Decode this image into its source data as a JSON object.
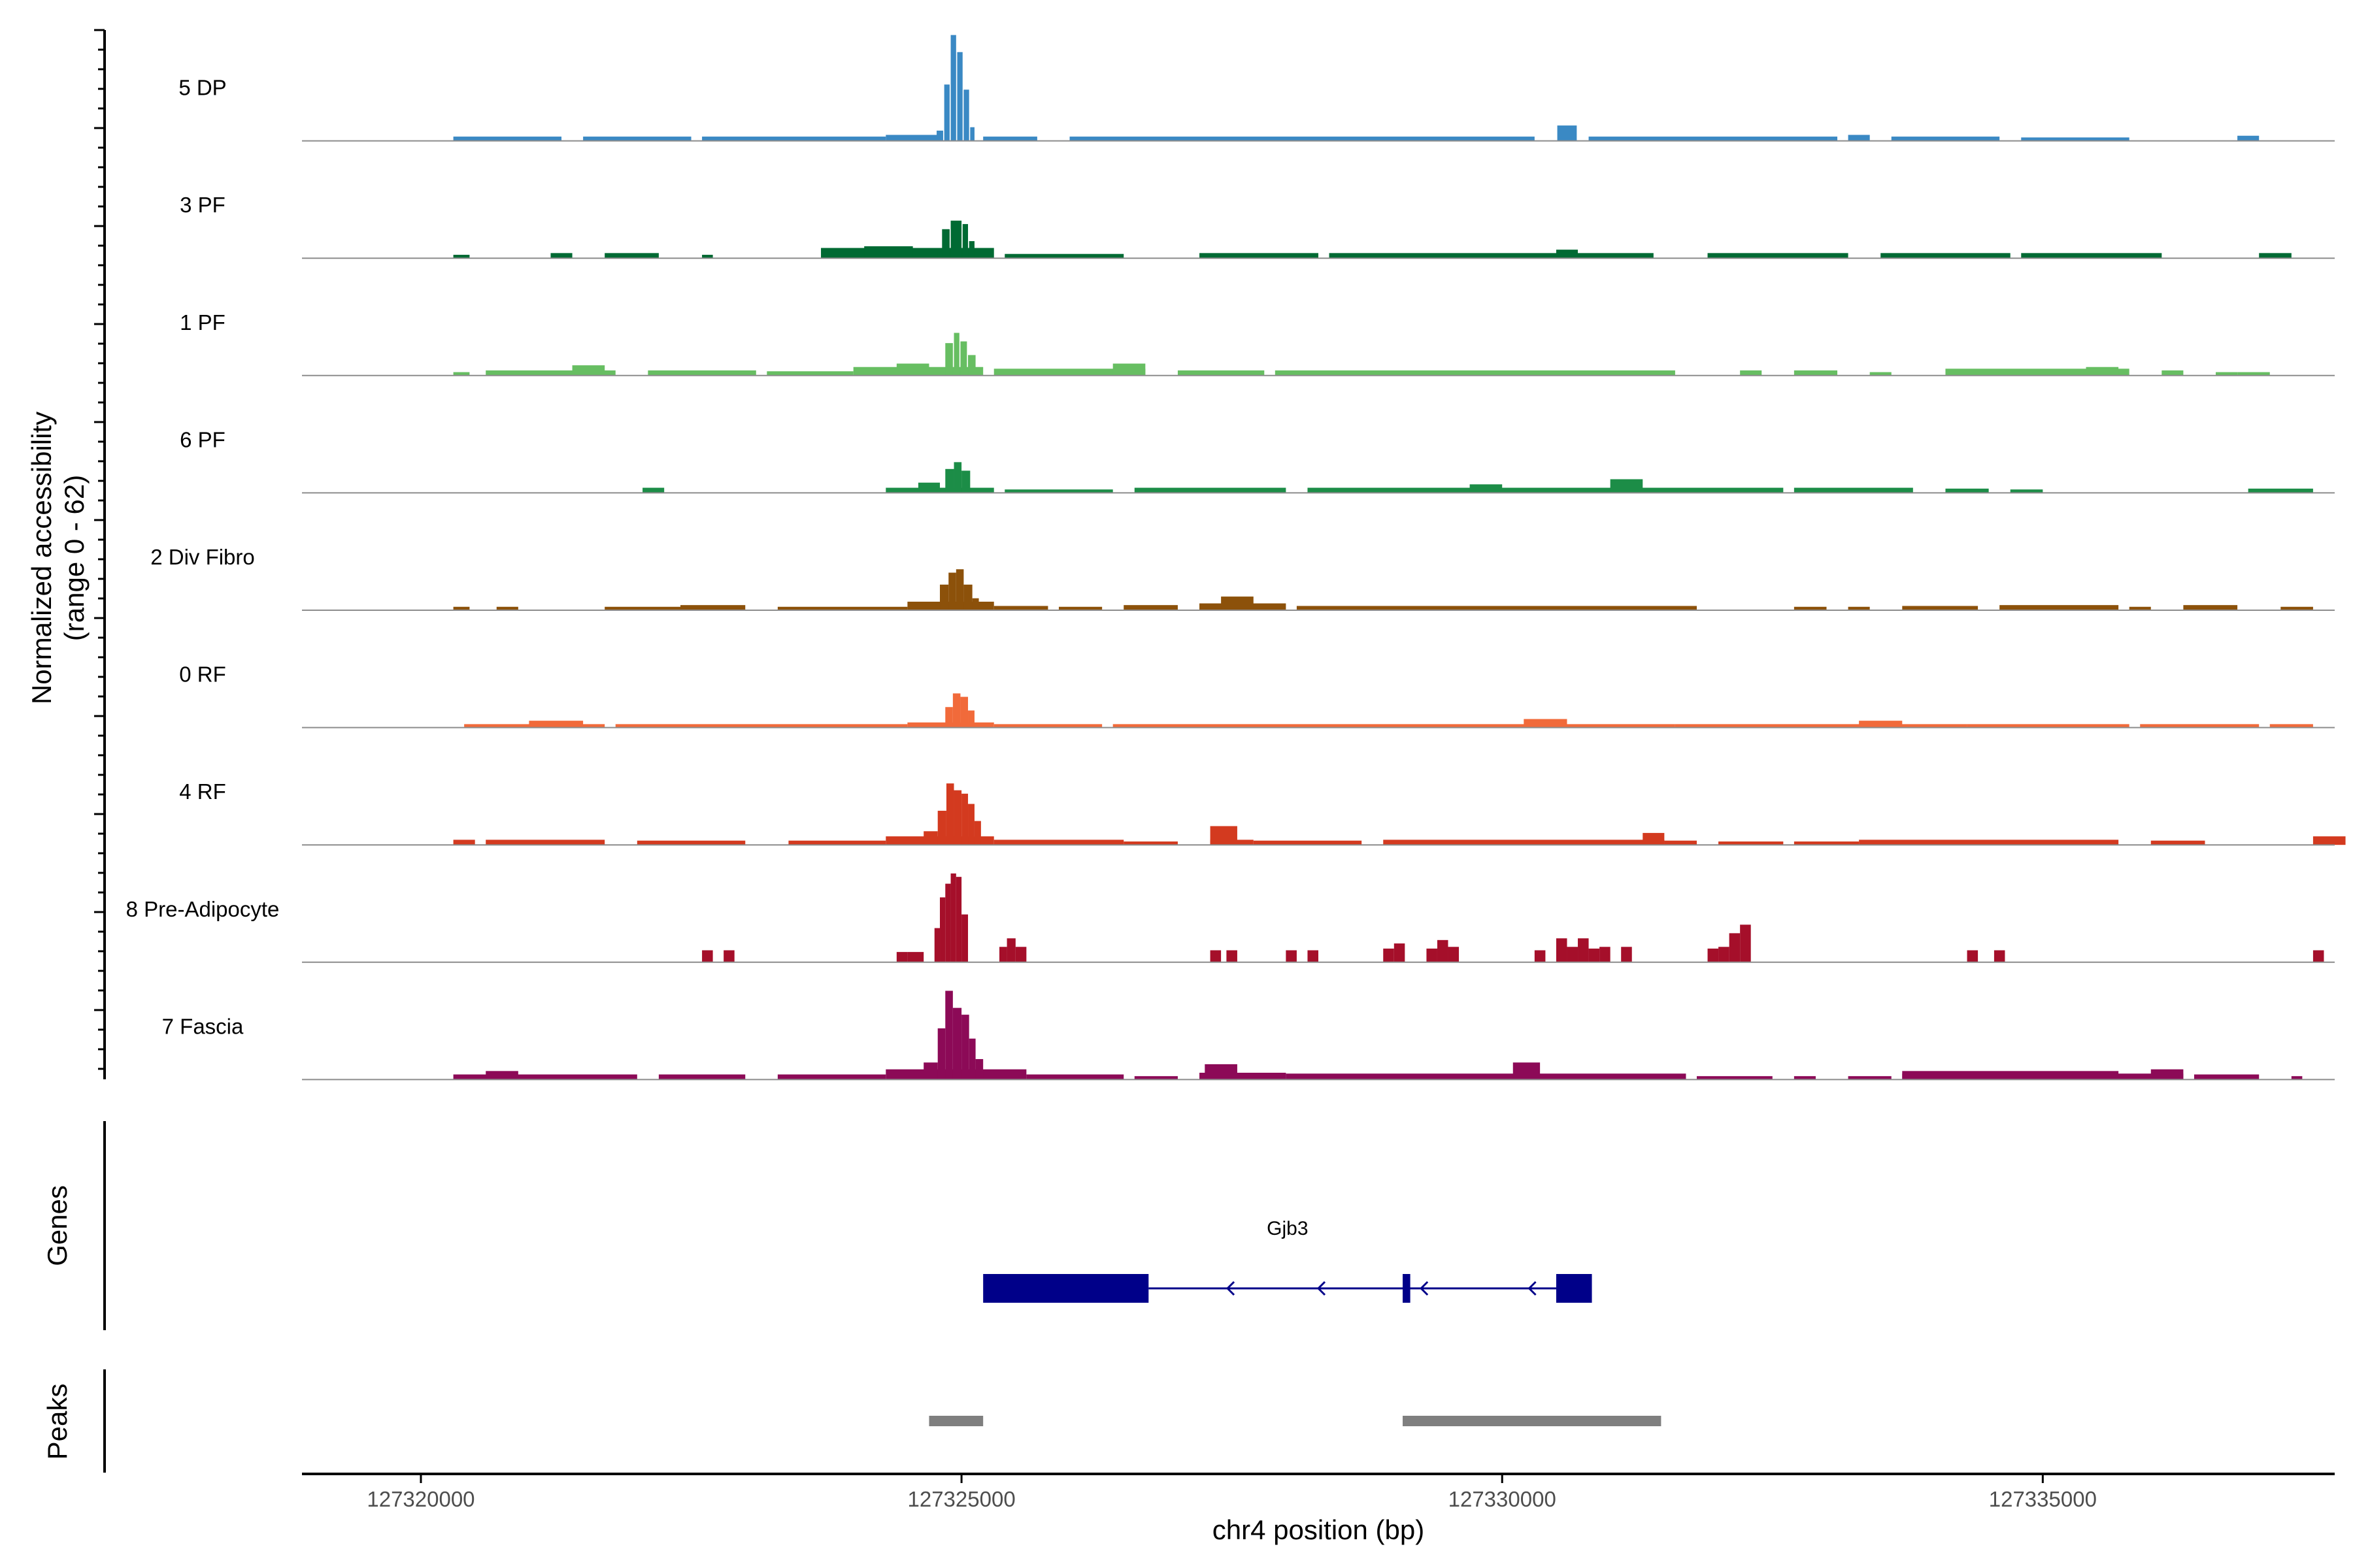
{
  "chart_data": {
    "type": "coverage-track",
    "title": "",
    "ylabel_line1": "Normalized accessibility",
    "ylabel_line2": "(range 0 - 62)",
    "xlabel": "chr4 position (bp)",
    "yrange": [
      0,
      62
    ],
    "xlim": [
      127318900,
      127337700
    ],
    "xticks": [
      127320000,
      127325000,
      127330000,
      127335000
    ],
    "xtick_labels": [
      "127320000",
      "127325000",
      "127330000",
      "127335000"
    ],
    "tracks": [
      {
        "label": "5 DP",
        "color": "#3A89C4",
        "bg": [
          [
            127320300,
            127321300,
            2.5
          ],
          [
            127321500,
            127322500,
            2.5
          ],
          [
            127322600,
            127324300,
            2.5
          ],
          [
            127324300,
            127324800,
            3.5
          ],
          [
            127325200,
            127325700,
            2.5
          ],
          [
            127326000,
            127330300,
            2.5
          ],
          [
            127330800,
            127333100,
            2.5
          ],
          [
            127333200,
            127333400,
            3.5
          ],
          [
            127333600,
            127334600,
            2.5
          ],
          [
            127334800,
            127335800,
            2
          ],
          [
            127336800,
            127337000,
            3
          ]
        ],
        "peaks": [
          [
            127324770,
            127324830,
            6
          ],
          [
            127324840,
            127324890,
            33
          ],
          [
            127324900,
            127324950,
            62
          ],
          [
            127324960,
            127325010,
            52
          ],
          [
            127325020,
            127325070,
            30
          ],
          [
            127325080,
            127325120,
            8
          ],
          [
            127330510,
            127330690,
            9
          ]
        ]
      },
      {
        "label": "3 PF",
        "color": "#006A33",
        "bg": [
          [
            127320300,
            127320450,
            2
          ],
          [
            127321200,
            127321400,
            3
          ],
          [
            127321700,
            127322200,
            3
          ],
          [
            127322600,
            127322700,
            2
          ],
          [
            127323700,
            127325300,
            6
          ],
          [
            127325400,
            127326500,
            2.5
          ],
          [
            127327200,
            127328300,
            3
          ],
          [
            127328400,
            127331400,
            3
          ],
          [
            127331900,
            127333200,
            3
          ],
          [
            127333500,
            127334700,
            3
          ],
          [
            127334800,
            127336100,
            3
          ],
          [
            127337000,
            127337300,
            3
          ]
        ],
        "peaks": [
          [
            127324100,
            127324550,
            7
          ],
          [
            127324650,
            127324780,
            5
          ],
          [
            127324820,
            127324890,
            17
          ],
          [
            127324900,
            127325000,
            22
          ],
          [
            127325010,
            127325060,
            20
          ],
          [
            127325070,
            127325120,
            10
          ],
          [
            127330500,
            127330700,
            5
          ]
        ]
      },
      {
        "label": "1 PF",
        "color": "#67BE62",
        "bg": [
          [
            127320300,
            127320450,
            2
          ],
          [
            127320600,
            127321800,
            3
          ],
          [
            127322100,
            127323100,
            3
          ],
          [
            127323200,
            127324000,
            2.5
          ],
          [
            127324000,
            127325200,
            5
          ],
          [
            127325300,
            127326700,
            4
          ],
          [
            127327000,
            127327800,
            3
          ],
          [
            127327900,
            127331600,
            3
          ],
          [
            127332200,
            127332400,
            3
          ],
          [
            127332700,
            127333100,
            3
          ],
          [
            127333400,
            127333600,
            2
          ],
          [
            127334100,
            127335800,
            4
          ],
          [
            127336100,
            127336300,
            3
          ],
          [
            127336600,
            127336800,
            2
          ],
          [
            127336800,
            127337100,
            2
          ]
        ],
        "peaks": [
          [
            127324850,
            127324920,
            19
          ],
          [
            127324930,
            127324980,
            25
          ],
          [
            127324990,
            127325050,
            20
          ],
          [
            127325060,
            127325130,
            12
          ],
          [
            127321400,
            127321700,
            6
          ],
          [
            127324400,
            127324700,
            7
          ],
          [
            127326400,
            127326700,
            7
          ],
          [
            127335400,
            127335700,
            5
          ]
        ]
      },
      {
        "label": "6 PF",
        "color": "#1C8D47",
        "bg": [
          [
            127322050,
            127322250,
            3
          ],
          [
            127324300,
            127325300,
            3
          ],
          [
            127325400,
            127326400,
            2
          ],
          [
            127326600,
            127328000,
            3
          ],
          [
            127328200,
            127332600,
            3
          ],
          [
            127332700,
            127333800,
            3
          ],
          [
            127334100,
            127334500,
            2.5
          ],
          [
            127334700,
            127335000,
            2
          ],
          [
            127336900,
            127337500,
            2.5
          ]
        ],
        "peaks": [
          [
            127324850,
            127324930,
            14
          ],
          [
            127324930,
            127325000,
            18
          ],
          [
            127325000,
            127325080,
            13
          ],
          [
            127324600,
            127324800,
            6
          ],
          [
            127331000,
            127331300,
            8
          ],
          [
            127329700,
            127330000,
            5
          ]
        ]
      },
      {
        "label": "2 Div Fibro",
        "color": "#8C510A",
        "bg": [
          [
            127320300,
            127320450,
            2
          ],
          [
            127320700,
            127320900,
            2
          ],
          [
            127321700,
            127322400,
            2
          ],
          [
            127322400,
            127323000,
            3
          ],
          [
            127323300,
            127324500,
            2
          ],
          [
            127324500,
            127325300,
            5
          ],
          [
            127325300,
            127325800,
            2.5
          ],
          [
            127325900,
            127326300,
            2
          ],
          [
            127326500,
            127327000,
            3
          ],
          [
            127327200,
            127328000,
            4
          ],
          [
            127328100,
            127331800,
            2.5
          ],
          [
            127332700,
            127333000,
            2
          ],
          [
            127333200,
            127333400,
            2
          ],
          [
            127333700,
            127334400,
            2.5
          ],
          [
            127334600,
            127335700,
            3
          ],
          [
            127335800,
            127336000,
            2
          ],
          [
            127336300,
            127336800,
            3
          ],
          [
            127337200,
            127337500,
            2
          ]
        ],
        "peaks": [
          [
            127324800,
            127324880,
            15
          ],
          [
            127324880,
            127324950,
            22
          ],
          [
            127324950,
            127325020,
            24
          ],
          [
            127325020,
            127325100,
            15
          ],
          [
            127325100,
            127325160,
            7
          ],
          [
            127327400,
            127327700,
            8
          ]
        ]
      },
      {
        "label": "0 RF",
        "color": "#F16A3A",
        "bg": [
          [
            127320400,
            127321700,
            2
          ],
          [
            127321800,
            127323600,
            2
          ],
          [
            127323600,
            127324500,
            2
          ],
          [
            127324500,
            127325300,
            3
          ],
          [
            127325300,
            127326300,
            2
          ],
          [
            127326400,
            127330600,
            2
          ],
          [
            127330600,
            127331600,
            2
          ],
          [
            127331600,
            127334300,
            2
          ],
          [
            127334300,
            127335800,
            2
          ],
          [
            127335900,
            127337000,
            2
          ],
          [
            127337100,
            127337500,
            2
          ]
        ],
        "peaks": [
          [
            127324850,
            127324920,
            12
          ],
          [
            127324920,
            127324990,
            20
          ],
          [
            127324990,
            127325060,
            18
          ],
          [
            127325060,
            127325120,
            10
          ],
          [
            127321000,
            127321500,
            4
          ],
          [
            127330200,
            127330600,
            5
          ],
          [
            127333300,
            127333700,
            4
          ]
        ]
      },
      {
        "label": "4 RF",
        "color": "#D33A1F",
        "bg": [
          [
            127320300,
            127320500,
            3
          ],
          [
            127320600,
            127321700,
            3
          ],
          [
            127322000,
            127323000,
            2.5
          ],
          [
            127323400,
            127324300,
            2.5
          ],
          [
            127324300,
            127325300,
            5
          ],
          [
            127325300,
            127326500,
            3
          ],
          [
            127326500,
            127327000,
            2
          ],
          [
            127327300,
            127327700,
            3
          ],
          [
            127327700,
            127328700,
            2.5
          ],
          [
            127328900,
            127331500,
            3
          ],
          [
            127331500,
            127331800,
            2.5
          ],
          [
            127332000,
            127332600,
            2
          ],
          [
            127332700,
            127333300,
            2
          ],
          [
            127333300,
            127335700,
            3
          ],
          [
            127336000,
            127336500,
            2.5
          ],
          [
            127337500,
            127337800,
            5
          ]
        ],
        "peaks": [
          [
            127324650,
            127324780,
            8
          ],
          [
            127324780,
            127324860,
            20
          ],
          [
            127324860,
            127324930,
            36
          ],
          [
            127324930,
            127325000,
            32
          ],
          [
            127325000,
            127325060,
            30
          ],
          [
            127325060,
            127325120,
            24
          ],
          [
            127325120,
            127325180,
            14
          ],
          [
            127327300,
            127327550,
            11
          ],
          [
            127331300,
            127331500,
            7
          ]
        ]
      },
      {
        "label": "8 Pre-Adipocyte",
        "color": "#A50F2A",
        "bg": [],
        "peaks": [
          [
            127322600,
            127322700,
            7
          ],
          [
            127322800,
            127322900,
            7
          ],
          [
            127324400,
            127324500,
            6
          ],
          [
            127324500,
            127324650,
            6
          ],
          [
            127324750,
            127324800,
            20
          ],
          [
            127324800,
            127324850,
            38
          ],
          [
            127324850,
            127324900,
            46
          ],
          [
            127324900,
            127324950,
            52
          ],
          [
            127324950,
            127325000,
            50
          ],
          [
            127325000,
            127325060,
            28
          ],
          [
            127325350,
            127325420,
            9
          ],
          [
            127325420,
            127325500,
            14
          ],
          [
            127325500,
            127325600,
            9
          ],
          [
            127327300,
            127327400,
            7
          ],
          [
            127327450,
            127327550,
            7
          ],
          [
            127328000,
            127328100,
            7
          ],
          [
            127328200,
            127328300,
            7
          ],
          [
            127328900,
            127329000,
            8
          ],
          [
            127329000,
            127329100,
            11
          ],
          [
            127329300,
            127329400,
            8
          ],
          [
            127329400,
            127329500,
            13
          ],
          [
            127329500,
            127329600,
            9
          ],
          [
            127330300,
            127330400,
            7
          ],
          [
            127330500,
            127330600,
            14
          ],
          [
            127330600,
            127330700,
            9
          ],
          [
            127330700,
            127330800,
            14
          ],
          [
            127330800,
            127330900,
            8
          ],
          [
            127330900,
            127331000,
            9
          ],
          [
            127331100,
            127331200,
            9
          ],
          [
            127331900,
            127332000,
            8
          ],
          [
            127332000,
            127332100,
            9
          ],
          [
            127332100,
            127332200,
            17
          ],
          [
            127332200,
            127332300,
            22
          ],
          [
            127334300,
            127334400,
            7
          ],
          [
            127334550,
            127334650,
            7
          ],
          [
            127337500,
            127337600,
            7
          ]
        ]
      },
      {
        "label": "7 Fascia",
        "color": "#8C0A57",
        "bg": [
          [
            127320300,
            127322000,
            3
          ],
          [
            127322200,
            127323000,
            3
          ],
          [
            127323300,
            127324300,
            3
          ],
          [
            127324300,
            127325600,
            6
          ],
          [
            127325600,
            127326500,
            3
          ],
          [
            127326600,
            127327000,
            2
          ],
          [
            127327200,
            127328000,
            4
          ],
          [
            127328000,
            127331700,
            3.5
          ],
          [
            127331800,
            127332500,
            2
          ],
          [
            127332700,
            127332900,
            2
          ],
          [
            127333200,
            127333600,
            2
          ],
          [
            127333700,
            127336300,
            3.5
          ],
          [
            127336400,
            127337000,
            3
          ],
          [
            127337300,
            127337400,
            2
          ]
        ],
        "peaks": [
          [
            127324650,
            127324780,
            10
          ],
          [
            127324780,
            127324850,
            30
          ],
          [
            127324850,
            127324920,
            52
          ],
          [
            127324920,
            127325000,
            42
          ],
          [
            127325000,
            127325070,
            38
          ],
          [
            127325070,
            127325130,
            24
          ],
          [
            127325130,
            127325200,
            12
          ],
          [
            127327250,
            127327550,
            9
          ],
          [
            127330100,
            127330350,
            10
          ],
          [
            127320600,
            127320900,
            5
          ],
          [
            127333700,
            127335700,
            5
          ],
          [
            127336000,
            127336300,
            6
          ]
        ]
      }
    ],
    "genes": [
      {
        "name": "Gjb3",
        "strand": "-",
        "exons": [
          [
            127325200,
            127326730
          ],
          [
            127329080,
            127329150
          ],
          [
            127330500,
            127330830
          ]
        ],
        "intron": [
          127326730,
          127330500
        ],
        "arrows": [
          127327460,
          127328300,
          127329250,
          127330250
        ]
      }
    ],
    "genes_label": "Genes",
    "peaks_label": "Peaks",
    "peak_regions": [
      [
        127324700,
        127325200
      ],
      [
        127329080,
        127331470
      ]
    ],
    "colors": {
      "gene": "#000089",
      "peak": "#7F7F7F",
      "baseline": "#8C8C8C"
    }
  }
}
